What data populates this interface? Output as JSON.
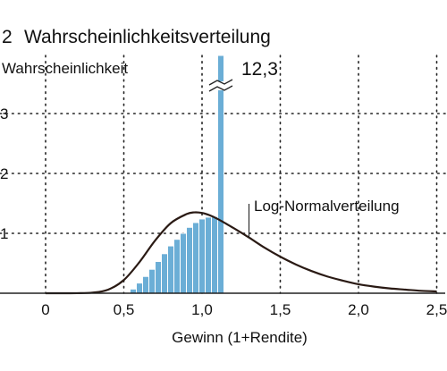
{
  "title_number": "2",
  "title": "Wahrscheinlichkeitsverteilung",
  "colors": {
    "bar": "#6baed6",
    "bar_edge": "#ffffff",
    "curve": "#2a1a14",
    "grid": "#222222",
    "text": "#111111"
  },
  "chart_data": {
    "type": "bar",
    "title": "Wahrscheinlichkeitsverteilung",
    "xlabel": "Gewinn (1+Rendite)",
    "ylabel": "Wahrscheinlichkeit",
    "xlim": [
      -0.15,
      2.55
    ],
    "ylim": [
      0,
      4.0
    ],
    "x_ticks": [
      0,
      0.5,
      1.0,
      1.5,
      2.0,
      2.5
    ],
    "x_tick_labels": [
      "0",
      "0,5",
      "1,0",
      "1,5",
      "2,0",
      "2,5"
    ],
    "y_ticks": [
      1,
      2,
      3
    ],
    "y_tick_labels": [
      "1",
      "2",
      "3"
    ],
    "grid": "dotted",
    "bars": {
      "bin_width": 0.04,
      "x": [
        0.56,
        0.6,
        0.64,
        0.68,
        0.72,
        0.76,
        0.8,
        0.84,
        0.88,
        0.92,
        0.96,
        1.0,
        1.04,
        1.08,
        1.12
      ],
      "values": [
        0.07,
        0.17,
        0.28,
        0.4,
        0.53,
        0.66,
        0.79,
        0.9,
        1.0,
        1.1,
        1.18,
        1.24,
        1.27,
        1.28,
        12.3
      ]
    },
    "break_annotation": "12,3",
    "series": [
      {
        "name": "Log-Normalverteilung",
        "x": [
          0,
          0.1,
          0.2,
          0.3,
          0.4,
          0.5,
          0.6,
          0.7,
          0.8,
          0.9,
          0.95,
          1.0,
          1.05,
          1.1,
          1.2,
          1.3,
          1.4,
          1.5,
          1.6,
          1.7,
          1.8,
          1.9,
          2.0,
          2.1,
          2.2,
          2.3,
          2.4,
          2.5
        ],
        "values": [
          0,
          0,
          0.001,
          0.01,
          0.06,
          0.22,
          0.52,
          0.88,
          1.17,
          1.32,
          1.35,
          1.34,
          1.3,
          1.24,
          1.09,
          0.93,
          0.76,
          0.61,
          0.48,
          0.37,
          0.28,
          0.21,
          0.15,
          0.11,
          0.08,
          0.06,
          0.04,
          0.03
        ]
      }
    ]
  }
}
